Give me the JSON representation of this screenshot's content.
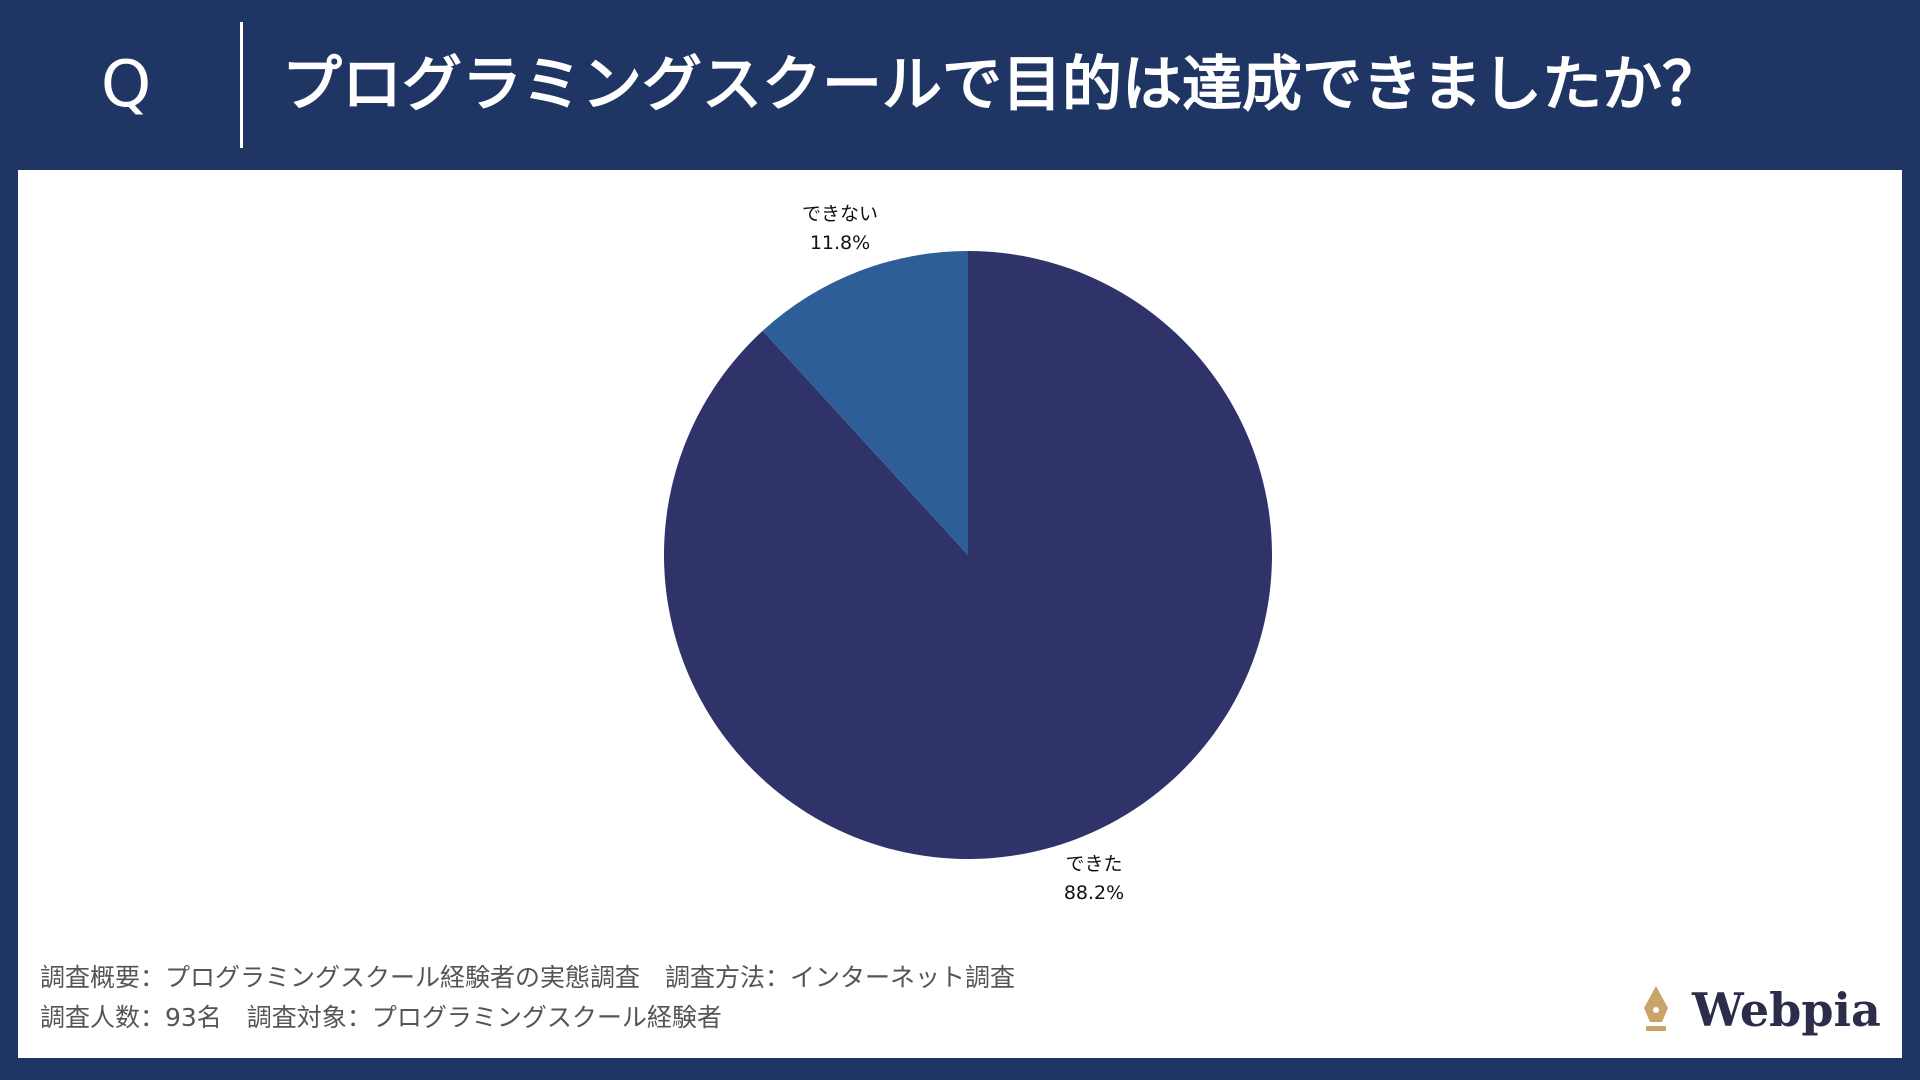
{
  "header": {
    "q_mark": "Q",
    "question": "プログラミングスクールで目的は達成できましたか？"
  },
  "chart_data": {
    "type": "pie",
    "categories": [
      "できた",
      "できない"
    ],
    "values": [
      88.2,
      11.8
    ],
    "value_labels": [
      "88.2%",
      "11.8%"
    ],
    "colors": [
      "#30336a",
      "#2e5e97"
    ],
    "start_angle_deg": 0,
    "direction": "clockwise",
    "legend": "none",
    "title": ""
  },
  "footer": {
    "line1": "調査概要：プログラミングスクール経験者の実態調査　調査方法：インターネット調査",
    "line2": "調査人数：93名　調査対象：プログラミングスクール経験者"
  },
  "logo": {
    "text": "Webpia",
    "icon": "fountain-pen-nib-icon",
    "icon_color": "#c9a46a"
  }
}
